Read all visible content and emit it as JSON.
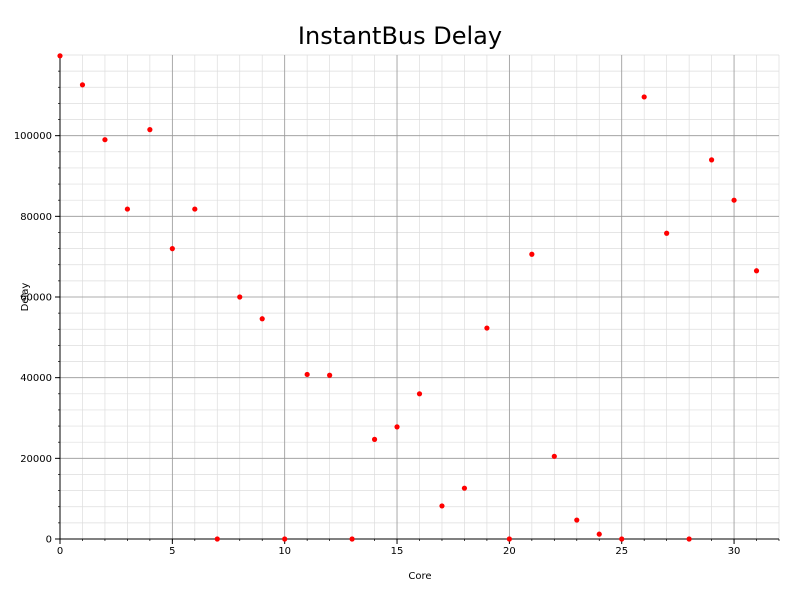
{
  "chart_data": {
    "type": "scatter",
    "title": "InstantBus Delay",
    "xlabel": "Core",
    "ylabel": "Delay",
    "xlim": [
      0,
      32
    ],
    "ylim": [
      0,
      120000
    ],
    "x_ticks": [
      0,
      5,
      10,
      15,
      20,
      25,
      30
    ],
    "y_ticks": [
      0,
      20000,
      40000,
      60000,
      80000,
      100000
    ],
    "x_tick_labels": [
      "0",
      "5",
      "10",
      "15",
      "20",
      "25",
      "30"
    ],
    "y_tick_labels": [
      "0",
      "20000",
      "40000",
      "60000",
      "80000",
      "100000"
    ],
    "x_minor_step": 1,
    "y_minor_step": 4000,
    "grid": true,
    "marker_color": "#ff0000",
    "series": [
      {
        "x": [
          0,
          1,
          2,
          3,
          4,
          5,
          6,
          7,
          8,
          9,
          10,
          11,
          12,
          13,
          14,
          15,
          16,
          17,
          18,
          19,
          20,
          21,
          22,
          23,
          24,
          25,
          26,
          27,
          28,
          29,
          30,
          31
        ],
        "y": [
          119800,
          112600,
          99000,
          81800,
          101500,
          72000,
          81800,
          0,
          60000,
          54600,
          0,
          40800,
          40600,
          0,
          24700,
          27800,
          36000,
          8200,
          12600,
          52300,
          0,
          70600,
          20500,
          4700,
          1200,
          0,
          109600,
          75800,
          0,
          94000,
          84000,
          66500
        ]
      }
    ]
  }
}
